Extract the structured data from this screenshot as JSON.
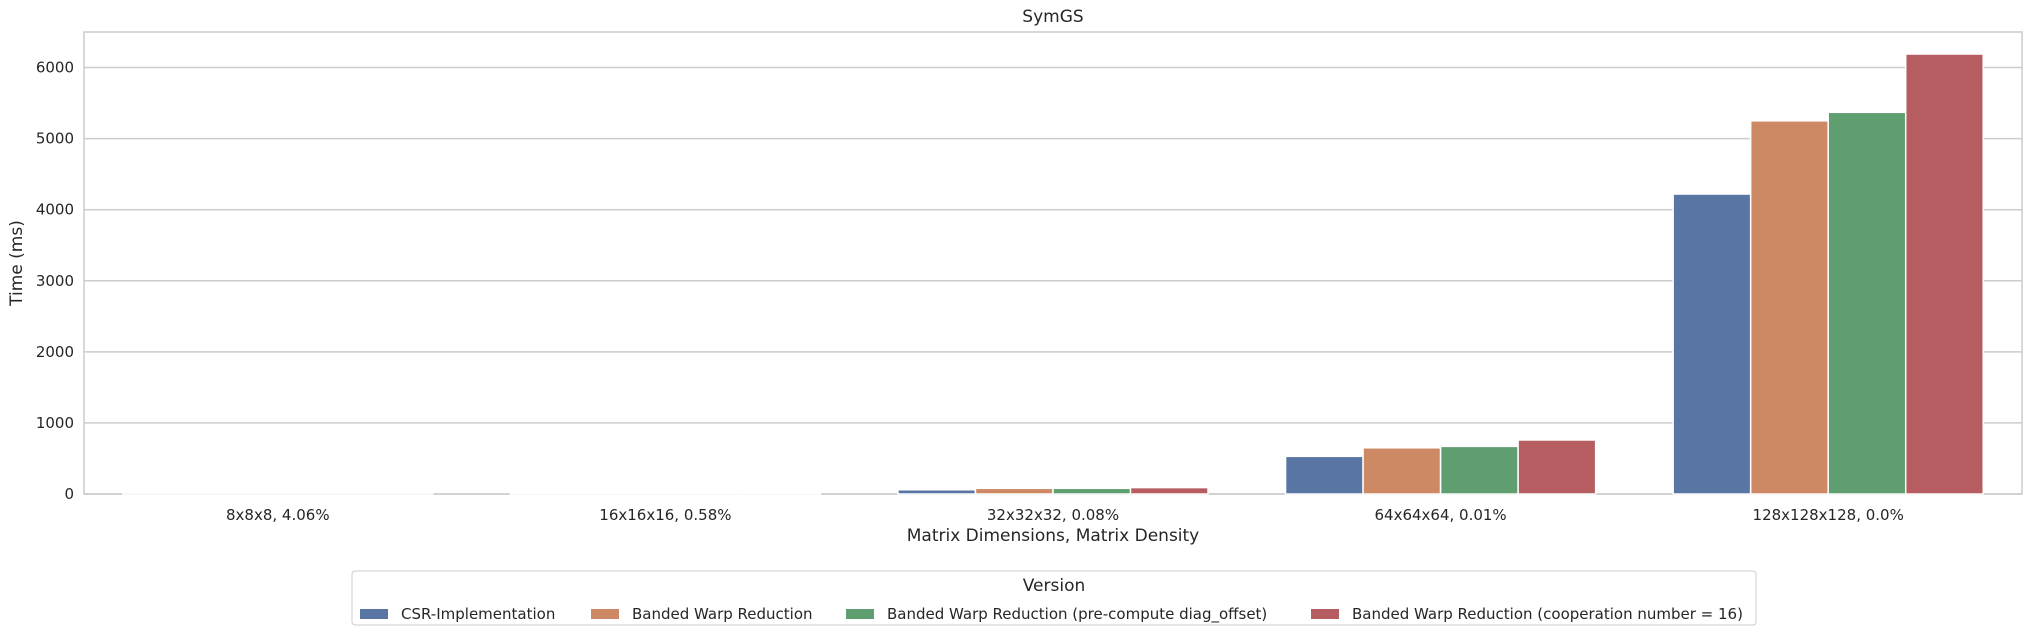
{
  "chart_data": {
    "type": "bar",
    "title": "SymGS",
    "xlabel": "Matrix Dimensions, Matrix Density",
    "ylabel": "Time (ms)",
    "ylim": [
      0,
      6500
    ],
    "yticks": [
      0,
      1000,
      2000,
      3000,
      4000,
      5000,
      6000
    ],
    "grid": true,
    "legend_title": "Version",
    "legend_placement": "bottom-center",
    "categories": [
      "8x8x8, 4.06%",
      "16x16x16, 0.58%",
      "32x32x32, 0.08%",
      "64x64x64, 0.01%",
      "128x128x128, 0.0%"
    ],
    "series": [
      {
        "name": "CSR-Implementation",
        "color": "#5875a4",
        "values": [
          1,
          9,
          60,
          530,
          4220
        ]
      },
      {
        "name": "Banded Warp Reduction",
        "color": "#cc8963",
        "values": [
          1,
          10,
          80,
          650,
          5250
        ]
      },
      {
        "name": "Banded Warp Reduction (pre-compute diag_offset)",
        "color": "#5f9e6e",
        "values": [
          1,
          10,
          80,
          670,
          5370
        ]
      },
      {
        "name": "Banded Warp Reduction (cooperation number = 16)",
        "color": "#b55d60",
        "values": [
          1,
          12,
          90,
          760,
          6190
        ]
      }
    ]
  }
}
